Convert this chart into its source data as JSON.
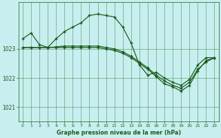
{
  "title": "Graphe pression niveau de la mer (hPa)",
  "bg_color": "#c8eef0",
  "grid_color": "#2d7a2d",
  "line_color": "#1a5c1a",
  "xlim": [
    -0.5,
    23.5
  ],
  "ylim": [
    1020.5,
    1024.6
  ],
  "yticks": [
    1021,
    1022,
    1023
  ],
  "xticks": [
    0,
    1,
    2,
    3,
    4,
    5,
    6,
    7,
    8,
    9,
    10,
    11,
    12,
    13,
    14,
    15,
    16,
    17,
    18,
    19,
    20,
    21,
    22,
    23
  ],
  "s1x": [
    0,
    1,
    2,
    3,
    4,
    5,
    6,
    7,
    8,
    9,
    10,
    11,
    12,
    13,
    14,
    15,
    16,
    17,
    18,
    19,
    20,
    21,
    22,
    23
  ],
  "s1y": [
    1023.35,
    1023.55,
    1023.15,
    1023.05,
    1023.35,
    1023.6,
    1023.75,
    1023.9,
    1024.15,
    1024.2,
    1024.15,
    1024.1,
    1023.75,
    1023.2,
    1022.45,
    1022.1,
    1022.2,
    1022.0,
    1021.85,
    1021.75,
    1021.95,
    1022.45,
    1022.7,
    1022.7
  ],
  "s2x": [
    0,
    1,
    2,
    3,
    4,
    5,
    6,
    7,
    8,
    9,
    10,
    11,
    12,
    13,
    14,
    15,
    16,
    17,
    18,
    19,
    20,
    21,
    22,
    23
  ],
  "s2y": [
    1023.05,
    1023.05,
    1023.05,
    1023.05,
    1023.07,
    1023.1,
    1023.1,
    1023.1,
    1023.1,
    1023.1,
    1023.05,
    1023.0,
    1022.9,
    1022.75,
    1022.55,
    1022.35,
    1022.1,
    1021.9,
    1021.75,
    1021.65,
    1021.85,
    1022.3,
    1022.55,
    1022.7
  ],
  "s3x": [
    0,
    1,
    2,
    3,
    4,
    5,
    6,
    7,
    8,
    9,
    10,
    11,
    12,
    13,
    14,
    15,
    16,
    17,
    18,
    19,
    20,
    21,
    22,
    23
  ],
  "s3y": [
    1023.05,
    1023.05,
    1023.05,
    1023.05,
    1023.05,
    1023.05,
    1023.05,
    1023.05,
    1023.05,
    1023.05,
    1023.0,
    1022.95,
    1022.85,
    1022.7,
    1022.5,
    1022.3,
    1022.05,
    1021.8,
    1021.7,
    1021.55,
    1021.75,
    1022.25,
    1022.6,
    1022.7
  ]
}
